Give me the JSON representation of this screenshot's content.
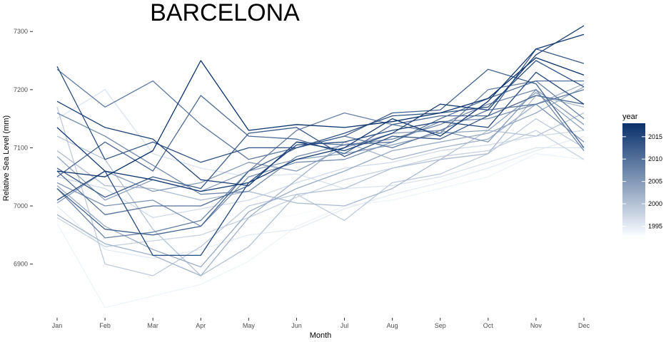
{
  "chart_data": {
    "type": "line",
    "title": "BARCELONA",
    "xlabel": "Month",
    "ylabel": "Relative Sea Level (mm)",
    "categories": [
      "Jan",
      "Feb",
      "Mar",
      "Apr",
      "May",
      "Jun",
      "Jul",
      "Aug",
      "Sep",
      "Oct",
      "Nov",
      "Dec"
    ],
    "yticks": [
      6900,
      7000,
      7100,
      7200,
      7300
    ],
    "ylim": [
      6815,
      7315
    ],
    "grid": false,
    "legend": {
      "title": "year",
      "position": "right",
      "ticks": [
        1995,
        2000,
        2005,
        2010,
        2015
      ],
      "range": [
        1993,
        2018
      ],
      "color_low": "#f7fbff",
      "color_high": "#08306b"
    },
    "series": [
      {
        "name": "1993",
        "year": 1993,
        "values": [
          6955,
          6950,
          6960,
          6965,
          6970,
          6985,
          7005,
          7025,
          7045,
          7065,
          7085,
          7100
        ]
      },
      {
        "name": "1994",
        "year": 1994,
        "values": [
          6970,
          6825,
          6845,
          6865,
          6905,
          6965,
          7000,
          7010,
          7030,
          7050,
          7090,
          7080
        ]
      },
      {
        "name": "1995",
        "year": 1995,
        "values": [
          7000,
          6925,
          6910,
          6925,
          6950,
          6960,
          6995,
          7020,
          7040,
          7065,
          7095,
          7120
        ]
      },
      {
        "name": "1996",
        "year": 1996,
        "values": [
          7150,
          7200,
          7090,
          7065,
          7050,
          7055,
          7030,
          7035,
          7050,
          7075,
          7100,
          7100
        ]
      },
      {
        "name": "1997",
        "year": 1997,
        "values": [
          7050,
          7030,
          6980,
          6995,
          7010,
          7040,
          7065,
          7075,
          7095,
          7105,
          7120,
          7130
        ]
      },
      {
        "name": "1998",
        "year": 1998,
        "values": [
          6980,
          6930,
          6940,
          6950,
          6980,
          7015,
          7045,
          7065,
          7085,
          7095,
          7130,
          7080
        ]
      },
      {
        "name": "1999",
        "year": 1999,
        "values": [
          7170,
          6900,
          6880,
          6930,
          7000,
          7020,
          6975,
          7040,
          7055,
          7090,
          7150,
          7100
        ]
      },
      {
        "name": "2000",
        "year": 2000,
        "values": [
          7120,
          7080,
          6960,
          6880,
          6930,
          7020,
          7030,
          7065,
          7080,
          7130,
          7120,
          7160
        ]
      },
      {
        "name": "2001",
        "year": 2001,
        "values": [
          7095,
          7035,
          7030,
          7010,
          7025,
          7005,
          7000,
          7030,
          7080,
          7090,
          7190,
          7170
        ]
      },
      {
        "name": "2002",
        "year": 2002,
        "values": [
          6985,
          6935,
          6915,
          6880,
          6980,
          7045,
          7110,
          7080,
          7100,
          7115,
          7175,
          7210
        ]
      },
      {
        "name": "2003",
        "year": 2003,
        "values": [
          7035,
          6965,
          6925,
          6895,
          6990,
          7030,
          7060,
          7095,
          7110,
          7125,
          7160,
          7205
        ]
      },
      {
        "name": "2004",
        "year": 2004,
        "values": [
          7085,
          7010,
          7045,
          7025,
          7060,
          7080,
          7090,
          7105,
          7125,
          7130,
          7195,
          7130
        ]
      },
      {
        "name": "2005",
        "year": 2005,
        "values": [
          7005,
          7060,
          7025,
          7040,
          7075,
          7060,
          7100,
          7125,
          7130,
          7110,
          7200,
          7140
        ]
      },
      {
        "name": "2006",
        "year": 2006,
        "values": [
          7040,
          7000,
          7010,
          6965,
          7050,
          7075,
          7080,
          7110,
          7145,
          7150,
          7175,
          7110
        ]
      },
      {
        "name": "2007",
        "year": 2007,
        "values": [
          7160,
          7120,
          7070,
          7020,
          7025,
          7085,
          7105,
          7115,
          7140,
          7175,
          7200,
          7095
        ]
      },
      {
        "name": "2008",
        "year": 2008,
        "values": [
          7030,
          6945,
          6955,
          6975,
          7060,
          7130,
          7160,
          7140,
          7125,
          7200,
          7215,
          7150
        ]
      },
      {
        "name": "2009",
        "year": 2009,
        "values": [
          7235,
          7170,
          7215,
          7140,
          7080,
          7100,
          7120,
          7100,
          7130,
          7165,
          7175,
          7200
        ]
      },
      {
        "name": "2010",
        "year": 2010,
        "values": [
          7060,
          6985,
          7000,
          7000,
          7035,
          7110,
          7105,
          7110,
          7150,
          7185,
          7215,
          7215
        ]
      },
      {
        "name": "2011",
        "year": 2011,
        "values": [
          7050,
          7110,
          7060,
          7190,
          7120,
          7115,
          7090,
          7140,
          7155,
          7155,
          7190,
          7175
        ]
      },
      {
        "name": "2012",
        "year": 2012,
        "values": [
          7030,
          6960,
          6950,
          6965,
          7060,
          7100,
          7120,
          7160,
          7165,
          7235,
          7210,
          7100
        ]
      },
      {
        "name": "2013",
        "year": 2013,
        "values": [
          7065,
          7015,
          7050,
          7030,
          7125,
          7135,
          7085,
          7120,
          7115,
          7155,
          7270,
          7245
        ]
      },
      {
        "name": "2014",
        "year": 2014,
        "values": [
          7240,
          7080,
          7110,
          7075,
          7100,
          7100,
          7125,
          7155,
          7160,
          7170,
          7250,
          7205
        ]
      },
      {
        "name": "2015",
        "year": 2015,
        "values": [
          7010,
          7060,
          6915,
          6915,
          7040,
          7105,
          7110,
          7130,
          7145,
          7135,
          7230,
          7175
        ]
      },
      {
        "name": "2016",
        "year": 2016,
        "values": [
          7180,
          7135,
          7115,
          7045,
          7035,
          7110,
          7095,
          7125,
          7175,
          7165,
          7260,
          7310
        ]
      },
      {
        "name": "2017",
        "year": 2017,
        "values": [
          7135,
          7060,
          7045,
          7025,
          7040,
          7080,
          7100,
          7150,
          7120,
          7180,
          7270,
          7295
        ]
      },
      {
        "name": "2018",
        "year": 2018,
        "values": [
          7060,
          7050,
          7095,
          7250,
          7130,
          7140,
          7135,
          7145,
          7160,
          7185,
          7255,
          7225
        ]
      }
    ]
  }
}
